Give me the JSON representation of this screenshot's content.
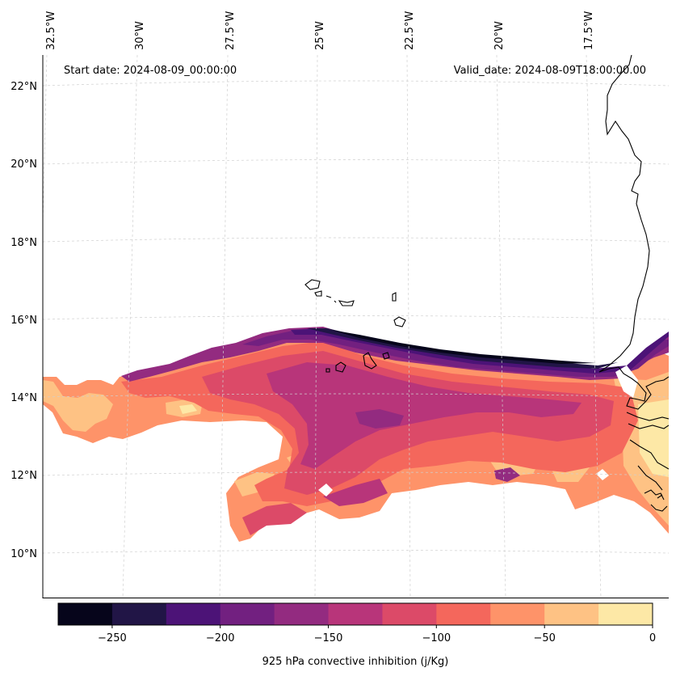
{
  "header": {
    "start_date": "Start date: 2024-08-09_00:00:00",
    "valid_date": "Valid_date: 2024-08-09T18:00:00.00"
  },
  "axes": {
    "lon_labels": [
      "32.5°W",
      "30°W",
      "27.5°W",
      "25°W",
      "22.5°W",
      "20°W",
      "17.5°W"
    ],
    "lat_labels": [
      "22°N",
      "20°N",
      "18°N",
      "16°N",
      "14°N",
      "12°N",
      "10°N"
    ]
  },
  "colorbar": {
    "label": "925 hPa convective inhibition (j/Kg)",
    "ticks": [
      "−250",
      "−200",
      "−150",
      "−100",
      "−50",
      "0"
    ],
    "levels": [
      -275,
      -250,
      -225,
      -200,
      -175,
      -150,
      -125,
      -100,
      -75,
      -50,
      -25,
      0
    ],
    "colors": [
      "#06051b",
      "#211546",
      "#4c1377",
      "#722080",
      "#932b80",
      "#b8357a",
      "#dc4a68",
      "#f4675c",
      "#fe9369",
      "#fec284",
      "#fde8a6"
    ]
  },
  "field": {
    "name": "925 hPa convective inhibition",
    "units": "j/Kg",
    "region": "Tropical eastern Atlantic, Cape Verde to West African coast",
    "min_value": -275,
    "max_value": 0
  }
}
